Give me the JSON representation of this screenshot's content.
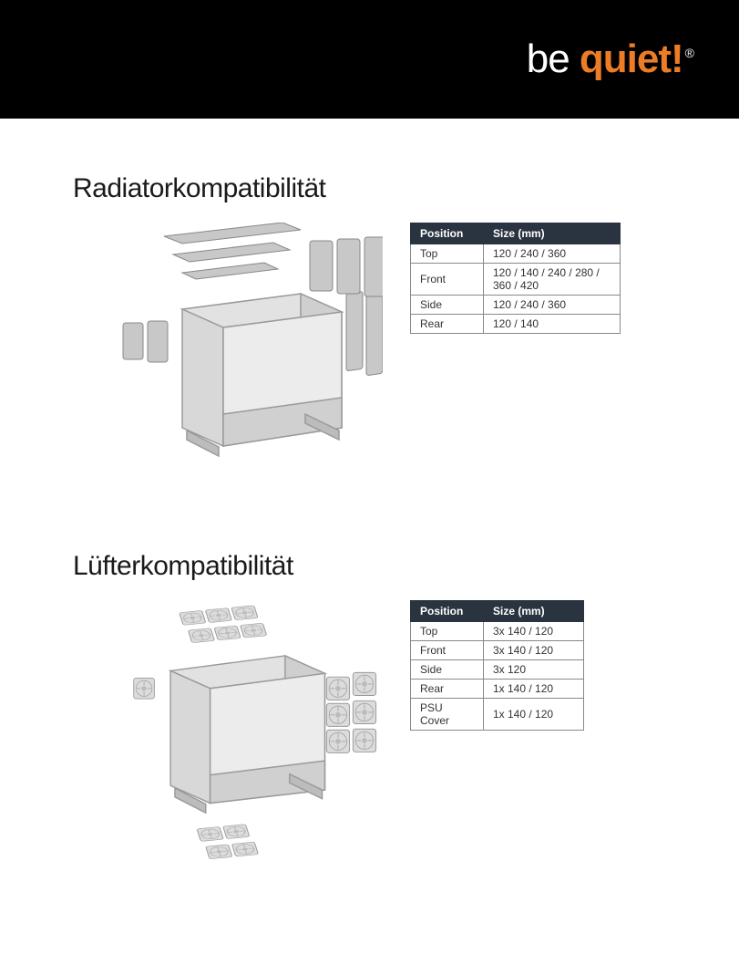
{
  "brand": {
    "part1": "be",
    "part2": "quiet!",
    "registered": "®"
  },
  "colors": {
    "header_bg": "#000000",
    "accent": "#ec7c26",
    "table_header_bg": "#2a3440",
    "table_header_fg": "#ffffff",
    "case_fill": "#d8d8d8",
    "case_stroke": "#9a9a9a",
    "radiator_fill": "#c8c8c8",
    "radiator_stroke": "#888888"
  },
  "section1": {
    "title": "Radiatorkompatibilität",
    "table": {
      "header_position": "Position",
      "header_size": "Size (mm)",
      "rows": [
        {
          "position": "Top",
          "size": "120 / 240 / 360"
        },
        {
          "position": "Front",
          "size": "120 / 140 / 240 / 280 / 360 / 420"
        },
        {
          "position": "Side",
          "size": "120 / 240 / 360"
        },
        {
          "position": "Rear",
          "size": "120 / 140"
        }
      ]
    }
  },
  "section2": {
    "title": "Lüfterkompatibilität",
    "table": {
      "header_position": "Position",
      "header_size": "Size (mm)",
      "rows": [
        {
          "position": "Top",
          "size": "3x 140 / 120"
        },
        {
          "position": "Front",
          "size": "3x 140 / 120"
        },
        {
          "position": "Side",
          "size": "3x 120"
        },
        {
          "position": "Rear",
          "size": "1x 140 / 120"
        },
        {
          "position": "PSU Cover",
          "size": "1x 140 / 120"
        }
      ]
    }
  }
}
